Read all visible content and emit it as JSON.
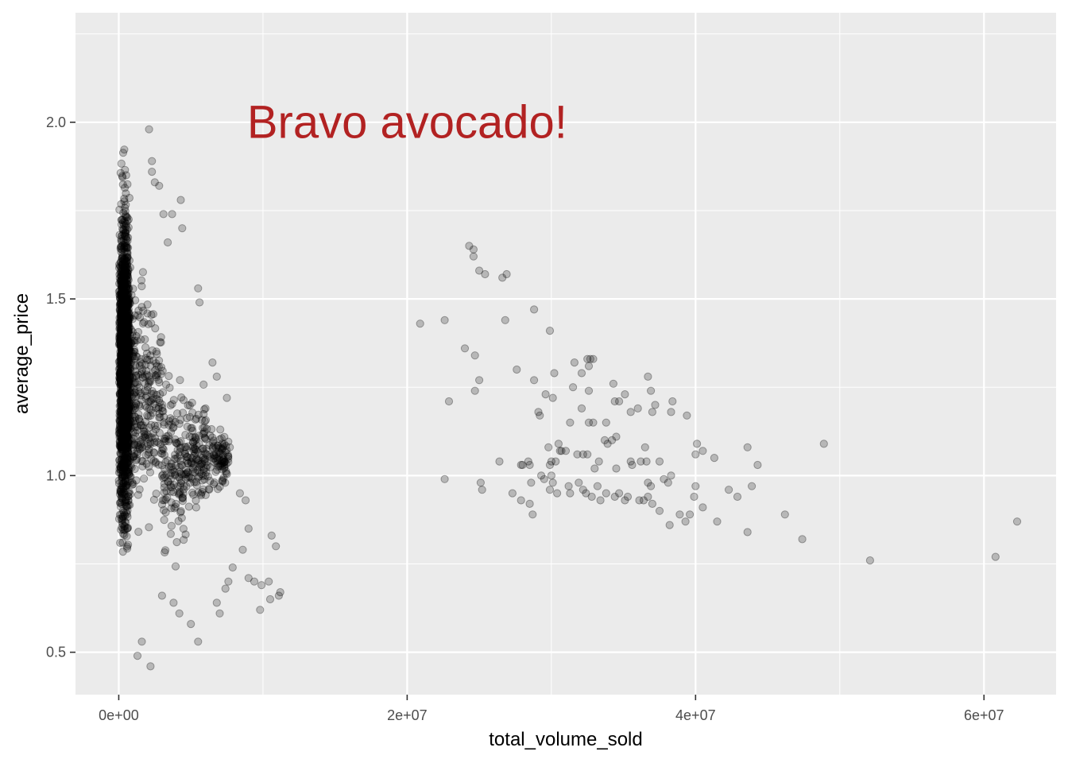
{
  "chart_data": {
    "type": "scatter",
    "xlabel": "total_volume_sold",
    "ylabel": "average_price",
    "xlim": [
      -3000000,
      65000000
    ],
    "ylim": [
      0.38,
      2.31
    ],
    "x_ticks": [
      0,
      20000000,
      40000000,
      60000000
    ],
    "x_tick_labels": [
      "0e+00",
      "2e+07",
      "4e+07",
      "6e+07"
    ],
    "y_ticks": [
      0.5,
      1.0,
      1.5,
      2.0
    ],
    "y_tick_labels": [
      "0.5",
      "1.0",
      "1.5",
      "2.0"
    ],
    "grid": true,
    "panel_color": "#EBEBEB",
    "grid_color": "#FFFFFF",
    "point_color": "#000000",
    "point_opacity": 0.22,
    "annotation": {
      "text": "Bravo avocado!",
      "x": 20000000,
      "y": 2.0,
      "color": "#B22222"
    },
    "points": [
      [
        20900000,
        1.43
      ],
      [
        22600000,
        1.44
      ],
      [
        22900000,
        1.21
      ],
      [
        22600000,
        0.99
      ],
      [
        24300000,
        1.65
      ],
      [
        24600000,
        1.62
      ],
      [
        24600000,
        1.64
      ],
      [
        25000000,
        1.58
      ],
      [
        25400000,
        1.57
      ],
      [
        24000000,
        1.36
      ],
      [
        24700000,
        1.34
      ],
      [
        25000000,
        1.27
      ],
      [
        24700000,
        1.24
      ],
      [
        25100000,
        0.98
      ],
      [
        25200000,
        0.96
      ],
      [
        26600000,
        1.56
      ],
      [
        26900000,
        1.57
      ],
      [
        26800000,
        1.44
      ],
      [
        28800000,
        1.47
      ],
      [
        29900000,
        1.41
      ],
      [
        27600000,
        1.3
      ],
      [
        28800000,
        1.27
      ],
      [
        30200000,
        1.29
      ],
      [
        29100000,
        1.18
      ],
      [
        29200000,
        1.17
      ],
      [
        29600000,
        1.23
      ],
      [
        30100000,
        1.22
      ],
      [
        30700000,
        1.07
      ],
      [
        31000000,
        1.07
      ],
      [
        31500000,
        1.25
      ],
      [
        31600000,
        1.32
      ],
      [
        32100000,
        1.29
      ],
      [
        32500000,
        1.33
      ],
      [
        32700000,
        1.33
      ],
      [
        32900000,
        1.33
      ],
      [
        32600000,
        1.31
      ],
      [
        32600000,
        1.24
      ],
      [
        32100000,
        1.19
      ],
      [
        31300000,
        1.15
      ],
      [
        32600000,
        1.15
      ],
      [
        32900000,
        1.15
      ],
      [
        31800000,
        1.06
      ],
      [
        32200000,
        1.06
      ],
      [
        32500000,
        1.06
      ],
      [
        33000000,
        1.02
      ],
      [
        33300000,
        1.04
      ],
      [
        33700000,
        1.1
      ],
      [
        33900000,
        1.09
      ],
      [
        33800000,
        1.15
      ],
      [
        34300000,
        1.26
      ],
      [
        34400000,
        1.21
      ],
      [
        34700000,
        1.21
      ],
      [
        35100000,
        1.23
      ],
      [
        35500000,
        1.18
      ],
      [
        36000000,
        1.19
      ],
      [
        36700000,
        1.28
      ],
      [
        36900000,
        1.24
      ],
      [
        37200000,
        1.2
      ],
      [
        37000000,
        1.18
      ],
      [
        38400000,
        1.21
      ],
      [
        38300000,
        1.18
      ],
      [
        39400000,
        1.17
      ],
      [
        35500000,
        1.04
      ],
      [
        35600000,
        1.03
      ],
      [
        36200000,
        1.04
      ],
      [
        36600000,
        1.04
      ],
      [
        36500000,
        1.08
      ],
      [
        36700000,
        0.98
      ],
      [
        36900000,
        0.97
      ],
      [
        37500000,
        1.04
      ],
      [
        37800000,
        0.99
      ],
      [
        38100000,
        0.98
      ],
      [
        38300000,
        1.0
      ],
      [
        36100000,
        0.93
      ],
      [
        36400000,
        0.93
      ],
      [
        36700000,
        0.94
      ],
      [
        37000000,
        0.92
      ],
      [
        37500000,
        0.9
      ],
      [
        38200000,
        0.86
      ],
      [
        38900000,
        0.89
      ],
      [
        39300000,
        0.87
      ],
      [
        39600000,
        0.89
      ],
      [
        39900000,
        0.94
      ],
      [
        40000000,
        0.97
      ],
      [
        40000000,
        1.06
      ],
      [
        40100000,
        1.09
      ],
      [
        40500000,
        1.07
      ],
      [
        41300000,
        1.05
      ],
      [
        40500000,
        0.91
      ],
      [
        41500000,
        0.87
      ],
      [
        42300000,
        0.96
      ],
      [
        42900000,
        0.94
      ],
      [
        43600000,
        1.08
      ],
      [
        43900000,
        0.97
      ],
      [
        44300000,
        1.03
      ],
      [
        43600000,
        0.84
      ],
      [
        46200000,
        0.89
      ],
      [
        47400000,
        0.82
      ],
      [
        48900000,
        1.09
      ],
      [
        27900000,
        1.03
      ],
      [
        28000000,
        1.03
      ],
      [
        28400000,
        1.04
      ],
      [
        28600000,
        0.98
      ],
      [
        28500000,
        1.03
      ],
      [
        29300000,
        1.0
      ],
      [
        29500000,
        0.99
      ],
      [
        29900000,
        1.03
      ],
      [
        30000000,
        1.04
      ],
      [
        30300000,
        1.04
      ],
      [
        29800000,
        1.08
      ],
      [
        30500000,
        1.09
      ],
      [
        30600000,
        1.07
      ],
      [
        30000000,
        1.0
      ],
      [
        30100000,
        0.98
      ],
      [
        30400000,
        0.95
      ],
      [
        31200000,
        0.97
      ],
      [
        31300000,
        0.95
      ],
      [
        31900000,
        0.98
      ],
      [
        32200000,
        0.96
      ],
      [
        32400000,
        0.95
      ],
      [
        32800000,
        0.94
      ],
      [
        33200000,
        0.97
      ],
      [
        33400000,
        0.93
      ],
      [
        33800000,
        0.95
      ],
      [
        34400000,
        0.94
      ],
      [
        34700000,
        0.95
      ],
      [
        35100000,
        0.93
      ],
      [
        35300000,
        0.94
      ],
      [
        34500000,
        1.02
      ],
      [
        26400000,
        1.04
      ],
      [
        27300000,
        0.95
      ],
      [
        27900000,
        0.93
      ],
      [
        28500000,
        0.92
      ],
      [
        28700000,
        0.89
      ],
      [
        29900000,
        0.96
      ],
      [
        34200000,
        1.1
      ],
      [
        34500000,
        1.11
      ],
      [
        52100000,
        0.76
      ],
      [
        60800000,
        0.77
      ],
      [
        62300000,
        0.87
      ],
      [
        2100000,
        1.98
      ],
      [
        2300000,
        1.89
      ],
      [
        2300000,
        1.86
      ],
      [
        2500000,
        1.83
      ],
      [
        2800000,
        1.82
      ],
      [
        4300000,
        1.78
      ],
      [
        3100000,
        1.74
      ],
      [
        3700000,
        1.74
      ],
      [
        4400000,
        1.7
      ],
      [
        3400000,
        1.66
      ],
      [
        5500000,
        1.53
      ],
      [
        5600000,
        1.49
      ],
      [
        6500000,
        1.32
      ],
      [
        6800000,
        1.28
      ],
      [
        7500000,
        1.22
      ],
      [
        7700000,
        1.08
      ],
      [
        8400000,
        0.95
      ],
      [
        8800000,
        0.93
      ],
      [
        9000000,
        0.85
      ],
      [
        8600000,
        0.79
      ],
      [
        9000000,
        0.71
      ],
      [
        9400000,
        0.7
      ],
      [
        9900000,
        0.69
      ],
      [
        10400000,
        0.7
      ],
      [
        9800000,
        0.62
      ],
      [
        10500000,
        0.65
      ],
      [
        10600000,
        0.83
      ],
      [
        10900000,
        0.8
      ],
      [
        11200000,
        0.67
      ],
      [
        11100000,
        0.66
      ],
      [
        5000000,
        0.58
      ],
      [
        5500000,
        0.53
      ],
      [
        3000000,
        0.66
      ],
      [
        3800000,
        0.64
      ],
      [
        4200000,
        0.61
      ],
      [
        2200000,
        0.46
      ],
      [
        1600000,
        0.53
      ],
      [
        1300000,
        0.49
      ],
      [
        6800000,
        0.64
      ],
      [
        7000000,
        0.61
      ],
      [
        7400000,
        0.68
      ],
      [
        7600000,
        0.7
      ],
      [
        7900000,
        0.74
      ]
    ]
  }
}
